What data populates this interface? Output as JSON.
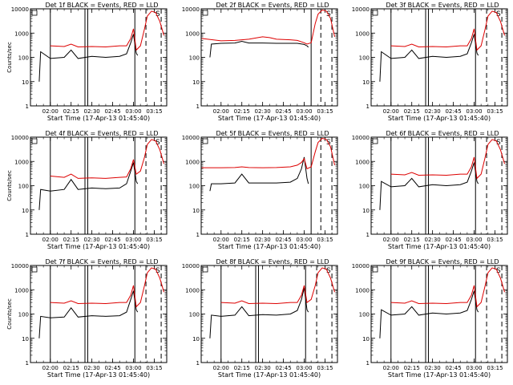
{
  "ylabel": "Counts/sec",
  "xlabel": "Start Time (17-Apr-13 01:45:40)",
  "x_ticks": [
    "02:00",
    "02:15",
    "02:30",
    "02:45",
    "03:00",
    "03:15"
  ],
  "y_ticks": [
    "1",
    "10",
    "100",
    "1000",
    "10000"
  ],
  "colors": {
    "events": "#000000",
    "lld": "#dd0000",
    "axes": "#000000"
  },
  "chart_data": [
    {
      "type": "line",
      "title": "Det 1f BLACK = Events, RED = LLD",
      "corner_label": "S",
      "ylog": true,
      "ylim": [
        1,
        10000
      ],
      "xlim": [
        "01:45:40",
        "03:24:00"
      ],
      "markers": {
        "solid": [
          "02:00",
          "02:25",
          "02:27",
          "03:01"
        ],
        "dashed": [
          "03:09",
          "03:20"
        ]
      },
      "series": [
        {
          "name": "Events",
          "x": [
            "01:52",
            "01:53",
            "02:00",
            "02:10",
            "02:15",
            "02:20",
            "02:30",
            "02:40",
            "02:50",
            "02:55",
            "02:58",
            "03:00",
            "03:02",
            "03:03"
          ],
          "values": [
            10,
            170,
            90,
            100,
            200,
            90,
            110,
            100,
            110,
            140,
            400,
            900,
            150,
            120
          ]
        },
        {
          "name": "LLD",
          "x": [
            "02:00",
            "02:10",
            "02:15",
            "02:20",
            "02:30",
            "02:40",
            "02:50",
            "02:55",
            "02:58",
            "03:00",
            "03:02",
            "03:05",
            "03:08",
            "03:10",
            "03:13",
            "03:16",
            "03:19",
            "03:22"
          ],
          "values": [
            300,
            280,
            350,
            270,
            280,
            270,
            300,
            300,
            600,
            1500,
            200,
            300,
            1500,
            5000,
            8000,
            7000,
            3000,
            800
          ]
        }
      ]
    },
    {
      "type": "line",
      "title": "Det 2f BLACK = Events, RED = LLD",
      "corner_label": "S",
      "ylog": true,
      "ylim": [
        1,
        10000
      ],
      "xlim": [
        "01:45:40",
        "03:24:00"
      ],
      "markers": {
        "solid": [
          "03:05"
        ],
        "dashed": [
          "03:12",
          "03:20"
        ]
      },
      "series": [
        {
          "name": "Events",
          "x": [
            "01:52",
            "01:53",
            "02:00",
            "02:10",
            "02:15",
            "02:20",
            "02:30",
            "02:40",
            "02:50",
            "02:55",
            "03:00",
            "03:02",
            "03:03"
          ],
          "values": [
            100,
            350,
            380,
            390,
            460,
            390,
            390,
            380,
            380,
            380,
            340,
            300,
            260
          ]
        },
        {
          "name": "LLD",
          "x": [
            "01:46",
            "02:00",
            "02:10",
            "02:20",
            "02:30",
            "02:35",
            "02:40",
            "02:50",
            "02:55",
            "03:00",
            "03:02",
            "03:05",
            "03:08",
            "03:10",
            "03:13",
            "03:16",
            "03:19",
            "03:22"
          ],
          "values": [
            600,
            480,
            500,
            560,
            700,
            650,
            560,
            530,
            500,
            400,
            350,
            400,
            2500,
            6000,
            9000,
            8000,
            4000,
            700
          ]
        }
      ]
    },
    {
      "type": "line",
      "title": "Det 3f BLACK = Events, RED = LLD",
      "corner_label": "S",
      "ylog": true,
      "ylim": [
        1,
        10000
      ],
      "xlim": [
        "01:45:40",
        "03:24:00"
      ],
      "markers": {
        "solid": [
          "02:00",
          "02:25",
          "02:27",
          "03:01"
        ],
        "dashed": [
          "03:09",
          "03:20"
        ]
      },
      "series": [
        {
          "name": "Events",
          "x": [
            "01:52",
            "01:53",
            "02:00",
            "02:10",
            "02:15",
            "02:20",
            "02:30",
            "02:40",
            "02:50",
            "02:55",
            "02:58",
            "03:00",
            "03:02",
            "03:03"
          ],
          "values": [
            10,
            170,
            90,
            100,
            200,
            90,
            110,
            100,
            110,
            140,
            400,
            900,
            150,
            120
          ]
        },
        {
          "name": "LLD",
          "x": [
            "02:00",
            "02:10",
            "02:15",
            "02:20",
            "02:30",
            "02:40",
            "02:50",
            "02:55",
            "02:58",
            "03:00",
            "03:02",
            "03:05",
            "03:08",
            "03:10",
            "03:13",
            "03:16",
            "03:19",
            "03:22"
          ],
          "values": [
            300,
            280,
            350,
            270,
            280,
            270,
            300,
            300,
            600,
            1500,
            200,
            300,
            1500,
            5000,
            8000,
            7000,
            3000,
            800
          ]
        }
      ]
    },
    {
      "type": "line",
      "title": "Det 4f BLACK = Events, RED = LLD",
      "corner_label": "S",
      "ylog": true,
      "ylim": [
        1,
        10000
      ],
      "xlim": [
        "01:45:40",
        "03:24:00"
      ],
      "markers": {
        "solid": [
          "02:00",
          "02:25",
          "02:27",
          "03:01"
        ],
        "dashed": [
          "03:09",
          "03:20"
        ]
      },
      "series": [
        {
          "name": "Events",
          "x": [
            "01:52",
            "01:53",
            "02:00",
            "02:10",
            "02:15",
            "02:20",
            "02:30",
            "02:40",
            "02:50",
            "02:55",
            "02:58",
            "03:00",
            "03:02",
            "03:03"
          ],
          "values": [
            10,
            70,
            60,
            70,
            180,
            70,
            80,
            75,
            80,
            120,
            400,
            900,
            150,
            120
          ]
        },
        {
          "name": "LLD",
          "x": [
            "02:00",
            "02:10",
            "02:15",
            "02:20",
            "02:30",
            "02:40",
            "02:50",
            "02:55",
            "02:58",
            "03:00",
            "03:02",
            "03:05",
            "03:08",
            "03:10",
            "03:13",
            "03:16",
            "03:19",
            "03:22"
          ],
          "values": [
            250,
            220,
            300,
            200,
            210,
            200,
            220,
            230,
            500,
            1200,
            300,
            400,
            1500,
            5000,
            8000,
            7000,
            3000,
            800
          ]
        }
      ]
    },
    {
      "type": "line",
      "title": "Det 5f BLACK = Events, RED = LLD",
      "corner_label": "S",
      "ylog": true,
      "ylim": [
        1,
        10000
      ],
      "xlim": [
        "01:45:40",
        "03:24:00"
      ],
      "markers": {
        "solid": [
          "03:05"
        ],
        "dashed": [
          "03:12",
          "03:20"
        ]
      },
      "series": [
        {
          "name": "Events",
          "x": [
            "01:52",
            "01:53",
            "02:00",
            "02:10",
            "02:15",
            "02:20",
            "02:30",
            "02:40",
            "02:50",
            "02:55",
            "02:58",
            "03:00",
            "03:02",
            "03:03"
          ],
          "values": [
            60,
            120,
            120,
            130,
            300,
            130,
            130,
            130,
            140,
            200,
            500,
            1500,
            200,
            120
          ]
        },
        {
          "name": "LLD",
          "x": [
            "01:46",
            "02:00",
            "02:10",
            "02:15",
            "02:20",
            "02:30",
            "02:40",
            "02:50",
            "02:55",
            "02:58",
            "03:00",
            "03:02",
            "03:05",
            "03:08",
            "03:10",
            "03:13",
            "03:16",
            "03:19",
            "03:22"
          ],
          "values": [
            550,
            550,
            560,
            600,
            560,
            550,
            560,
            600,
            700,
            900,
            1300,
            500,
            600,
            2500,
            6000,
            9000,
            8000,
            4000,
            700
          ]
        }
      ]
    },
    {
      "type": "line",
      "title": "Det 6f BLACK = Events, RED = LLD",
      "corner_label": "S",
      "ylog": true,
      "ylim": [
        1,
        10000
      ],
      "xlim": [
        "01:45:40",
        "03:24:00"
      ],
      "markers": {
        "solid": [
          "02:00",
          "02:25",
          "02:27",
          "03:01"
        ],
        "dashed": [
          "03:09",
          "03:20"
        ]
      },
      "series": [
        {
          "name": "Events",
          "x": [
            "01:52",
            "01:53",
            "02:00",
            "02:10",
            "02:15",
            "02:20",
            "02:30",
            "02:40",
            "02:50",
            "02:55",
            "02:58",
            "03:00",
            "03:02",
            "03:03"
          ],
          "values": [
            10,
            150,
            90,
            100,
            200,
            90,
            110,
            100,
            110,
            140,
            400,
            900,
            150,
            120
          ]
        },
        {
          "name": "LLD",
          "x": [
            "02:00",
            "02:10",
            "02:15",
            "02:20",
            "02:30",
            "02:40",
            "02:50",
            "02:55",
            "02:58",
            "03:00",
            "03:02",
            "03:05",
            "03:08",
            "03:10",
            "03:13",
            "03:16",
            "03:19",
            "03:22"
          ],
          "values": [
            300,
            280,
            350,
            270,
            280,
            270,
            300,
            300,
            600,
            1500,
            200,
            300,
            1500,
            5000,
            8000,
            7000,
            3000,
            800
          ]
        }
      ]
    },
    {
      "type": "line",
      "title": "Det 7f BLACK = Events, RED = LLD",
      "corner_label": "S",
      "ylog": true,
      "ylim": [
        1,
        10000
      ],
      "xlim": [
        "01:45:40",
        "03:24:00"
      ],
      "markers": {
        "solid": [
          "02:00",
          "02:25",
          "02:27",
          "03:01"
        ],
        "dashed": [
          "03:09",
          "03:20"
        ]
      },
      "series": [
        {
          "name": "Events",
          "x": [
            "01:52",
            "01:53",
            "02:00",
            "02:10",
            "02:15",
            "02:20",
            "02:30",
            "02:40",
            "02:50",
            "02:55",
            "02:58",
            "03:00",
            "03:02",
            "03:03"
          ],
          "values": [
            10,
            80,
            70,
            75,
            180,
            75,
            85,
            80,
            85,
            120,
            400,
            900,
            150,
            120
          ]
        },
        {
          "name": "LLD",
          "x": [
            "02:00",
            "02:10",
            "02:15",
            "02:20",
            "02:30",
            "02:40",
            "02:50",
            "02:55",
            "02:58",
            "03:00",
            "03:02",
            "03:05",
            "03:08",
            "03:10",
            "03:13",
            "03:16",
            "03:19",
            "03:22"
          ],
          "values": [
            300,
            280,
            350,
            270,
            280,
            270,
            300,
            300,
            600,
            1500,
            200,
            300,
            1500,
            5000,
            8000,
            7000,
            3000,
            800
          ]
        }
      ]
    },
    {
      "type": "line",
      "title": "Det 8f BLACK = Events, RED = LLD",
      "corner_label": "S",
      "ylog": true,
      "ylim": [
        1,
        10000
      ],
      "xlim": [
        "01:45:40",
        "03:24:00"
      ],
      "markers": {
        "solid": [
          "02:00",
          "02:25",
          "02:27",
          "03:01"
        ],
        "dashed": [
          "03:09",
          "03:20"
        ]
      },
      "series": [
        {
          "name": "Events",
          "x": [
            "01:52",
            "01:53",
            "02:00",
            "02:10",
            "02:15",
            "02:20",
            "02:30",
            "02:40",
            "02:50",
            "02:55",
            "02:58",
            "03:00",
            "03:02",
            "03:03"
          ],
          "values": [
            10,
            90,
            80,
            90,
            200,
            85,
            95,
            90,
            100,
            140,
            400,
            1200,
            150,
            120
          ]
        },
        {
          "name": "LLD",
          "x": [
            "02:00",
            "02:10",
            "02:15",
            "02:20",
            "02:30",
            "02:40",
            "02:50",
            "02:55",
            "02:58",
            "03:00",
            "03:02",
            "03:05",
            "03:08",
            "03:10",
            "03:13",
            "03:16",
            "03:19",
            "03:22"
          ],
          "values": [
            300,
            280,
            350,
            270,
            280,
            270,
            300,
            300,
            600,
            1500,
            300,
            400,
            1500,
            5000,
            8000,
            7000,
            3000,
            800
          ]
        }
      ]
    },
    {
      "type": "line",
      "title": "Det 9f BLACK = Events, RED = LLD",
      "corner_label": "S",
      "ylog": true,
      "ylim": [
        1,
        10000
      ],
      "xlim": [
        "01:45:40",
        "03:24:00"
      ],
      "markers": {
        "solid": [
          "02:00",
          "02:25",
          "02:27",
          "03:01"
        ],
        "dashed": [
          "03:09",
          "03:20"
        ]
      },
      "series": [
        {
          "name": "Events",
          "x": [
            "01:52",
            "01:53",
            "02:00",
            "02:10",
            "02:15",
            "02:20",
            "02:30",
            "02:40",
            "02:50",
            "02:55",
            "02:58",
            "03:00",
            "03:02",
            "03:03"
          ],
          "values": [
            10,
            150,
            90,
            100,
            200,
            90,
            110,
            100,
            110,
            140,
            400,
            900,
            150,
            120
          ]
        },
        {
          "name": "LLD",
          "x": [
            "02:00",
            "02:10",
            "02:15",
            "02:20",
            "02:30",
            "02:40",
            "02:50",
            "02:55",
            "02:58",
            "03:00",
            "03:02",
            "03:05",
            "03:08",
            "03:10",
            "03:13",
            "03:16",
            "03:19",
            "03:22"
          ],
          "values": [
            300,
            280,
            350,
            270,
            280,
            270,
            300,
            300,
            600,
            1500,
            200,
            300,
            1500,
            5000,
            8000,
            7000,
            3000,
            800
          ]
        }
      ]
    }
  ]
}
